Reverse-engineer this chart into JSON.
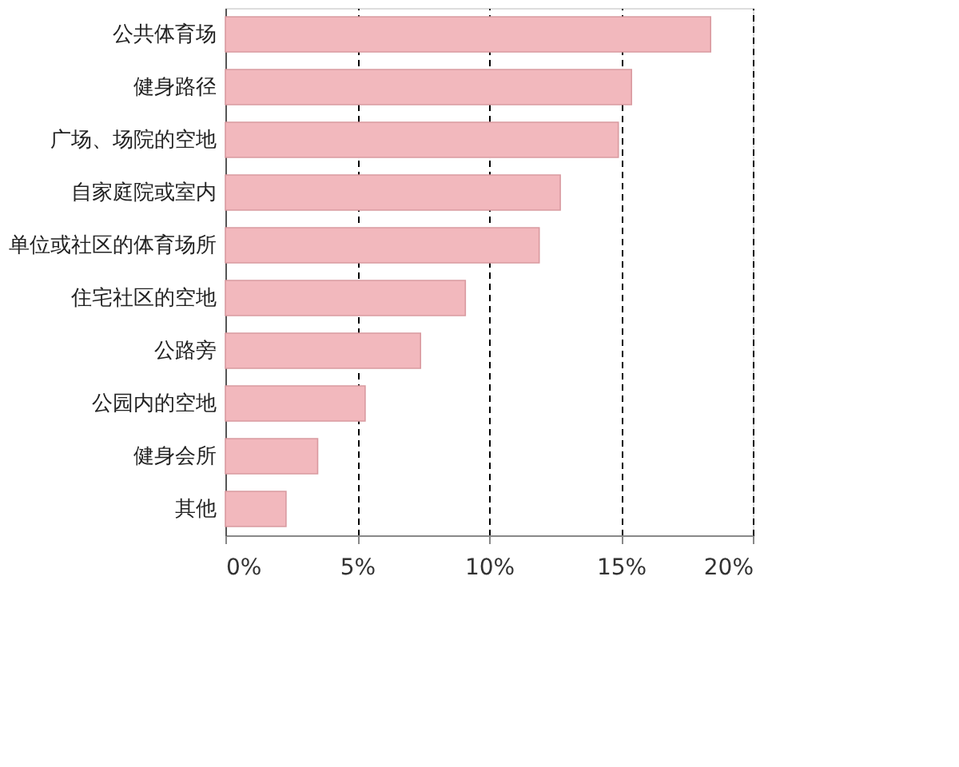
{
  "chart_data": {
    "type": "bar",
    "orientation": "horizontal",
    "categories": [
      "公共体育场",
      "健身路径",
      "广场、场院的空地",
      "自家庭院或室内",
      "单位或社区的体育场所",
      "住宅社区的空地",
      "公路旁",
      "公园内的空地",
      "健身会所",
      "其他"
    ],
    "values": [
      18.4,
      15.4,
      14.9,
      12.7,
      11.9,
      9.1,
      7.4,
      5.3,
      3.5,
      2.3
    ],
    "color": "#f2b8bd",
    "xlim": [
      0,
      20
    ],
    "xticks": [
      {
        "value": 0,
        "label": "0%"
      },
      {
        "value": 5,
        "label": "5%"
      },
      {
        "value": 10,
        "label": "10%"
      },
      {
        "value": 15,
        "label": "15%"
      },
      {
        "value": 20,
        "label": "20%"
      }
    ],
    "grid": "x"
  }
}
